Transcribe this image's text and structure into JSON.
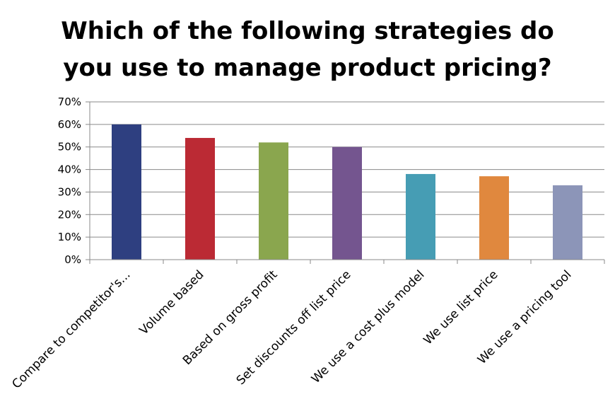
{
  "chart_data": {
    "type": "bar",
    "title_lines": [
      "Which of the following strategies do",
      "you use to manage product pricing?"
    ],
    "categories": [
      "Compare to competitor's...",
      "Volume based",
      "Based on gross profit",
      "Set discounts off list price",
      "We use a cost plus model",
      "We use list price",
      "We use a pricing tool"
    ],
    "values": [
      60,
      54,
      52,
      50,
      38,
      37,
      33
    ],
    "bar_colors": [
      "#2e3f80",
      "#bb2a34",
      "#8aa64e",
      "#74558f",
      "#469db4",
      "#e0883e",
      "#8c95b8"
    ],
    "ylim": [
      0,
      70
    ],
    "y_ticks": [
      0,
      10,
      20,
      30,
      40,
      50,
      60,
      70
    ],
    "y_tick_labels": [
      "0%",
      "10%",
      "20%",
      "30%",
      "40%",
      "50%",
      "60%",
      "70%"
    ],
    "grid": true,
    "legend": "none"
  }
}
